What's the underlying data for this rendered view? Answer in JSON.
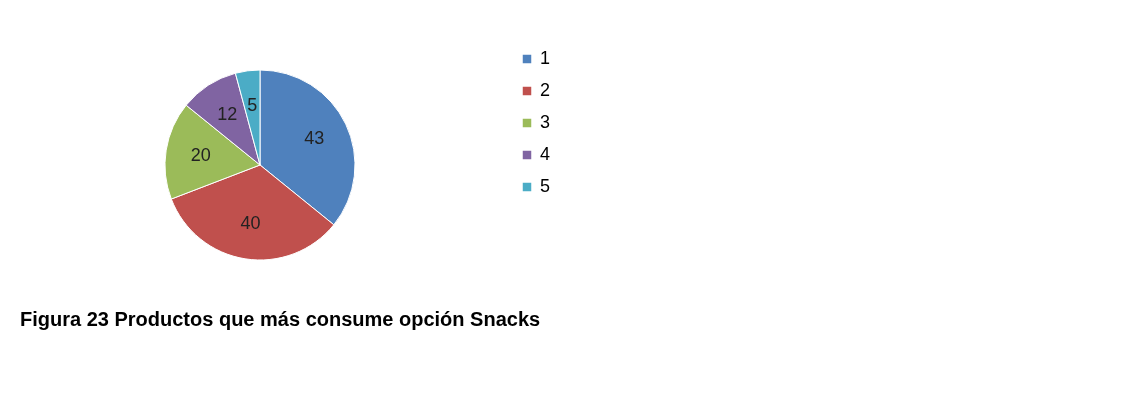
{
  "chart_data": {
    "type": "pie",
    "title": "Figura 23 Productos que más consume opción Snacks",
    "categories": [
      "1",
      "2",
      "3",
      "4",
      "5"
    ],
    "values": [
      43,
      40,
      20,
      12,
      5
    ],
    "colors": [
      "#4f81bd",
      "#c0504d",
      "#9bbb59",
      "#8064a2",
      "#4bacc6"
    ],
    "data_labels": true,
    "legend": "right"
  }
}
